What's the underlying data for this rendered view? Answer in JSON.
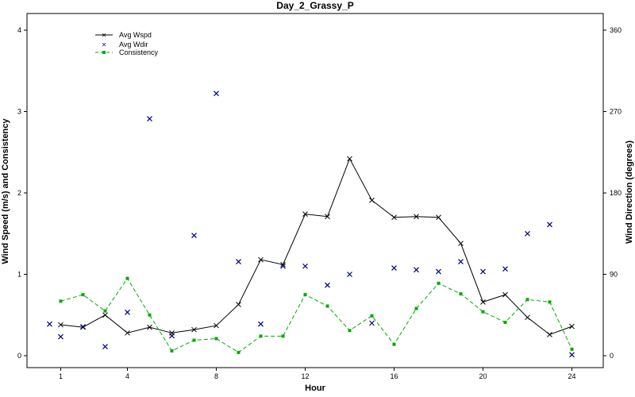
{
  "chart_data": {
    "type": "line",
    "title": "Day_2_Grassy_P",
    "xlabel": "Hour",
    "ylabel": "Wind Speed (m/s) and Consistency",
    "ylabel_right": "Wind Direction (degrees)",
    "xlim": [
      0,
      25
    ],
    "ylim": [
      0,
      4.2
    ],
    "ylim_right": [
      0,
      378
    ],
    "x_ticks": [
      1,
      4,
      8,
      12,
      16,
      20,
      24
    ],
    "y_ticks": [
      0,
      1,
      2,
      3,
      4
    ],
    "y_ticks_right": [
      0,
      90,
      180,
      270,
      360
    ],
    "legend_position": "top-left",
    "series": [
      {
        "name": "Avg Wspd",
        "axis": "left",
        "style": "line-x",
        "color": "#000000",
        "x": [
          1,
          2,
          3,
          4,
          5,
          6,
          7,
          8,
          9,
          10,
          11,
          12,
          13,
          14,
          15,
          16,
          17,
          18,
          19,
          20,
          21,
          22,
          23,
          24
        ],
        "values": [
          0.38,
          0.35,
          0.5,
          0.28,
          0.35,
          0.28,
          0.32,
          0.37,
          0.63,
          1.18,
          1.12,
          1.74,
          1.71,
          2.42,
          1.91,
          1.7,
          1.71,
          1.7,
          1.38,
          0.66,
          0.75,
          0.47,
          0.26,
          0.36
        ]
      },
      {
        "name": "Avg Wdir",
        "axis": "right",
        "style": "scatter-x",
        "color": "#000080",
        "x": [
          0.5,
          1,
          2,
          3,
          4,
          5,
          6,
          7,
          8,
          9,
          10,
          11,
          12,
          13,
          14,
          15,
          16,
          17,
          18,
          19,
          20,
          21,
          22,
          23,
          24
        ],
        "values": [
          35,
          21,
          32,
          10,
          48,
          262,
          22,
          133,
          290,
          104,
          35,
          99,
          99,
          78,
          90,
          36,
          97,
          95,
          93,
          104,
          93,
          96,
          135,
          145,
          1
        ]
      },
      {
        "name": "Consistency",
        "axis": "left",
        "style": "dashed-square",
        "color": "#00aa00",
        "x": [
          1,
          2,
          3,
          4,
          5,
          6,
          7,
          8,
          9,
          10,
          11,
          12,
          13,
          14,
          15,
          16,
          17,
          18,
          19,
          20,
          21,
          22,
          23,
          24
        ],
        "values": [
          0.67,
          0.75,
          0.55,
          0.95,
          0.5,
          0.06,
          0.19,
          0.21,
          0.04,
          0.24,
          0.24,
          0.75,
          0.61,
          0.31,
          0.49,
          0.14,
          0.58,
          0.89,
          0.76,
          0.54,
          0.41,
          0.69,
          0.66,
          0.08
        ]
      }
    ]
  }
}
